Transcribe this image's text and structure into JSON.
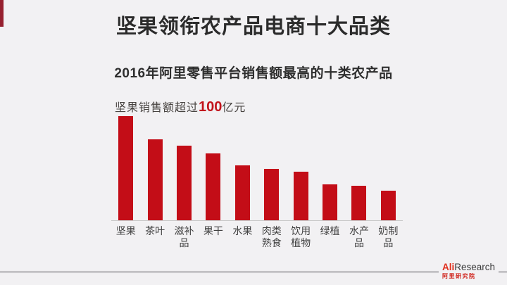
{
  "page": {
    "title": "坚果领衔农产品电商十大品类",
    "subtitle": "2016年阿里零售平台销售额最高的十类农产品"
  },
  "chart": {
    "annotation": {
      "prefix": "坚果销售额超过",
      "highlight": "100",
      "suffix": "亿元"
    }
  },
  "chart_data": {
    "type": "bar",
    "title": "2016年阿里零售平台销售额最高的十类农产品",
    "annotation": "坚果销售额超过100亿元",
    "categories": [
      "坚果",
      "茶叶",
      "滋补品",
      "果干",
      "水果",
      "肉类熟食",
      "饮用植物",
      "绿植",
      "水产品",
      "奶制品"
    ],
    "values": [
      108,
      84,
      77,
      69,
      57,
      53,
      50,
      37,
      36,
      31
    ],
    "unit": "亿元",
    "xlabel": "",
    "ylabel": "",
    "ylim": [
      0,
      115
    ],
    "grid": false,
    "legend": "none",
    "bar_color": "#c30d17",
    "note": "values estimated from bar heights; only anchor shown on screen is 坚果 > 100亿元"
  },
  "logo": {
    "ali": "Ali",
    "research": "Research",
    "sub": "阿里研究院"
  },
  "colors": {
    "background": "#f2f1f3",
    "bar_red": "#c30d17",
    "corner_maroon": "#96202f",
    "highlight_red": "#c2151d",
    "logo_red": "#e0301e",
    "title_text": "#2b2b2b"
  }
}
